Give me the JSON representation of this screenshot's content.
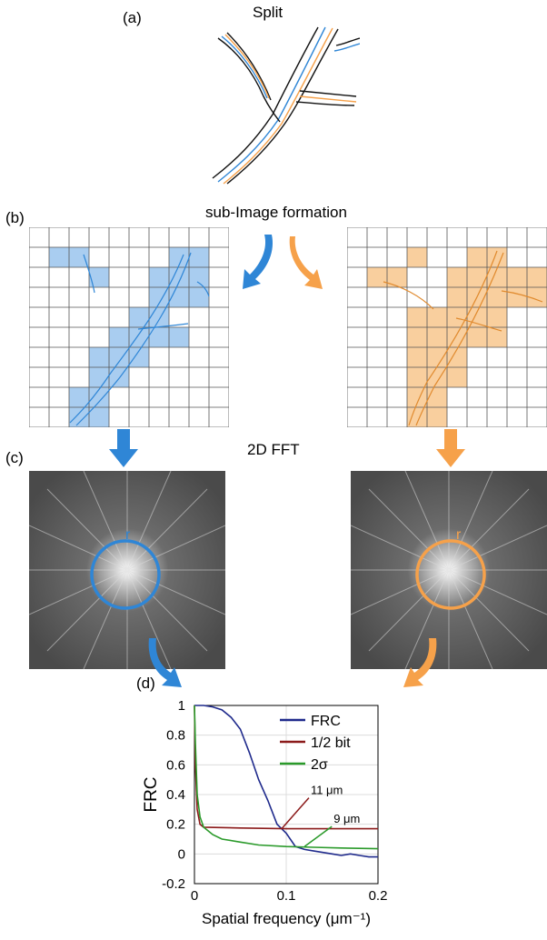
{
  "panels": {
    "a": {
      "label": "(a)",
      "title": "Split"
    },
    "b": {
      "label": "(b)",
      "title": "sub-Image formation"
    },
    "c": {
      "label": "(c)",
      "title": "2D FFT",
      "vector_symbol": "r"
    },
    "d": {
      "label": "(d)"
    }
  },
  "colors": {
    "blue": "#2f86d6",
    "orange": "#f6a14a",
    "blue_fill": "#a9cdf0",
    "orange_fill": "#f9cf9e",
    "frc_line": "#1f2a8c",
    "half_bit_line": "#8b1a1a",
    "two_sigma_line": "#2a9a2a"
  },
  "chart_data": {
    "type": "line",
    "xlabel": "Spatial frequency (μm⁻¹)",
    "ylabel": "FRC",
    "xlim": [
      0,
      0.2
    ],
    "ylim": [
      -0.2,
      1.0
    ],
    "xticks": [
      "0",
      "0.1",
      "0.2"
    ],
    "yticks": [
      "1",
      "0.8",
      "0.6",
      "0.4",
      "0.2",
      "0",
      "-0.2"
    ],
    "legend_position": "top-right",
    "grid": true,
    "series": [
      {
        "name": "FRC",
        "color": "#1f2a8c",
        "x": [
          0,
          0.01,
          0.02,
          0.03,
          0.04,
          0.05,
          0.06,
          0.07,
          0.08,
          0.09,
          0.1,
          0.11,
          0.12,
          0.13,
          0.14,
          0.15,
          0.16,
          0.17,
          0.18,
          0.19,
          0.2
        ],
        "y": [
          1.0,
          1.0,
          0.99,
          0.97,
          0.92,
          0.84,
          0.68,
          0.5,
          0.36,
          0.2,
          0.14,
          0.05,
          0.03,
          0.02,
          0.01,
          0.0,
          -0.01,
          0.0,
          -0.01,
          -0.02,
          -0.02
        ]
      },
      {
        "name": "1/2 bit",
        "color": "#8b1a1a",
        "x": [
          0,
          0.001,
          0.003,
          0.006,
          0.01,
          0.05,
          0.1,
          0.15,
          0.2
        ],
        "y": [
          1.0,
          0.6,
          0.3,
          0.2,
          0.18,
          0.175,
          0.17,
          0.17,
          0.17
        ]
      },
      {
        "name": "2σ",
        "color": "#2a9a2a",
        "x": [
          0,
          0.001,
          0.003,
          0.006,
          0.01,
          0.02,
          0.03,
          0.05,
          0.07,
          0.1,
          0.13,
          0.16,
          0.2
        ],
        "y": [
          1.0,
          0.75,
          0.4,
          0.25,
          0.18,
          0.13,
          0.1,
          0.08,
          0.06,
          0.05,
          0.045,
          0.04,
          0.035
        ]
      }
    ],
    "annotations": [
      {
        "text": "11 μm",
        "x": 0.095,
        "y": 0.17
      },
      {
        "text": "9 μm",
        "x": 0.12,
        "y": 0.05
      }
    ]
  }
}
